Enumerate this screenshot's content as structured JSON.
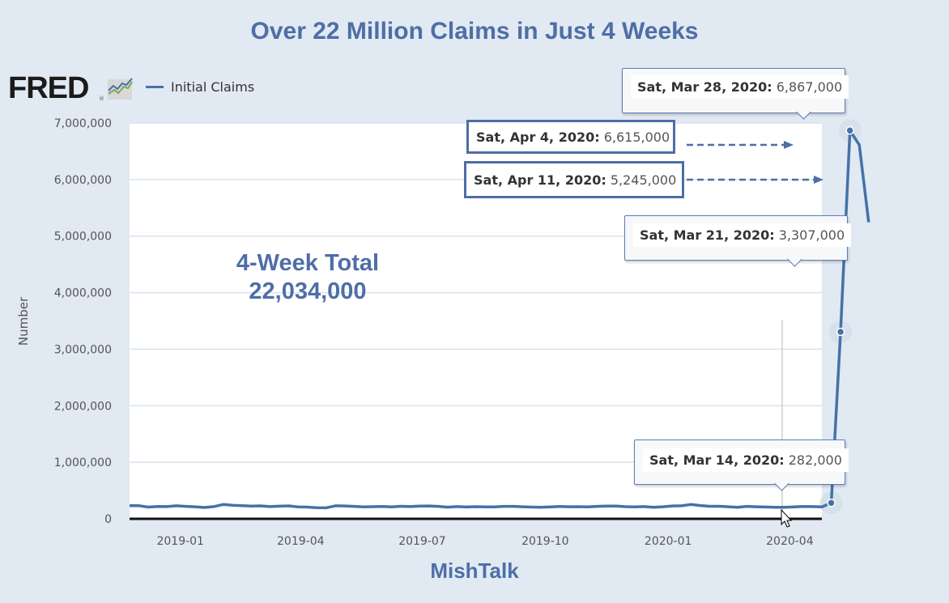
{
  "title": "Over 22 Million Claims in Just 4 Weeks",
  "logo": {
    "text": "FRED",
    "registered": "®"
  },
  "legend": {
    "label": "Initial Claims",
    "color": "#4572a7"
  },
  "annotation": {
    "line1": "4-Week Total",
    "line2": "22,034,000"
  },
  "source": "MishTalk",
  "tooltips": [
    {
      "date": "Sat, Mar 28, 2020:",
      "value": "6,867,000"
    },
    {
      "date": "Sat, Mar 21, 2020:",
      "value": "3,307,000"
    },
    {
      "date": "Sat, Mar 14, 2020:",
      "value": "282,000"
    }
  ],
  "callouts": [
    {
      "date": "Sat, Apr 4, 2020:",
      "value": "6,615,000"
    },
    {
      "date": "Sat, Apr 11, 2020:",
      "value": "5,245,000"
    }
  ],
  "chart_data": {
    "type": "line",
    "title": "Over 22 Million Claims in Just 4 Weeks",
    "xlabel": "",
    "ylabel": "Number",
    "ylim": [
      0,
      7000000
    ],
    "xlim": [
      "2018-11-24",
      "2020-04-25"
    ],
    "grid": true,
    "legend": "top-left",
    "yticks": [
      0,
      1000000,
      2000000,
      3000000,
      4000000,
      5000000,
      6000000,
      7000000
    ],
    "ytick_labels": [
      "0",
      "1,000,000",
      "2,000,000",
      "3,000,000",
      "4,000,000",
      "5,000,000",
      "6,000,000",
      "7,000,000"
    ],
    "xticks": [
      "2019-01-01",
      "2019-04-01",
      "2019-07-01",
      "2019-10-01",
      "2020-01-01",
      "2020-04-01"
    ],
    "xtick_labels": [
      "2019-01",
      "2019-04",
      "2019-07",
      "2019-10",
      "2020-01",
      "2020-04"
    ],
    "series": [
      {
        "name": "Initial Claims",
        "color": "#4572a7",
        "start": "2018-11-24",
        "interval_days": 7,
        "values": [
          234000,
          232000,
          208000,
          217000,
          216000,
          230000,
          220000,
          213000,
          200000,
          216000,
          253000,
          239000,
          234000,
          225000,
          229000,
          216000,
          223000,
          229000,
          211000,
          208000,
          198000,
          195000,
          230000,
          228000,
          221000,
          212000,
          215000,
          218000,
          212000,
          222000,
          216000,
          226000,
          227000,
          221000,
          206000,
          216000,
          209000,
          215000,
          211000,
          212000,
          220000,
          221000,
          213000,
          208000,
          204000,
          210000,
          218000,
          214000,
          215000,
          212000,
          220000,
          225000,
          226000,
          215000,
          211000,
          216000,
          205000,
          213000,
          228000,
          230000,
          253000,
          235000,
          222000,
          222000,
          214000,
          204000,
          221000,
          213000,
          209000,
          205000,
          203000,
          211000,
          219000,
          216000,
          211000,
          282000,
          3307000,
          6867000,
          6615000,
          5245000
        ]
      }
    ]
  }
}
